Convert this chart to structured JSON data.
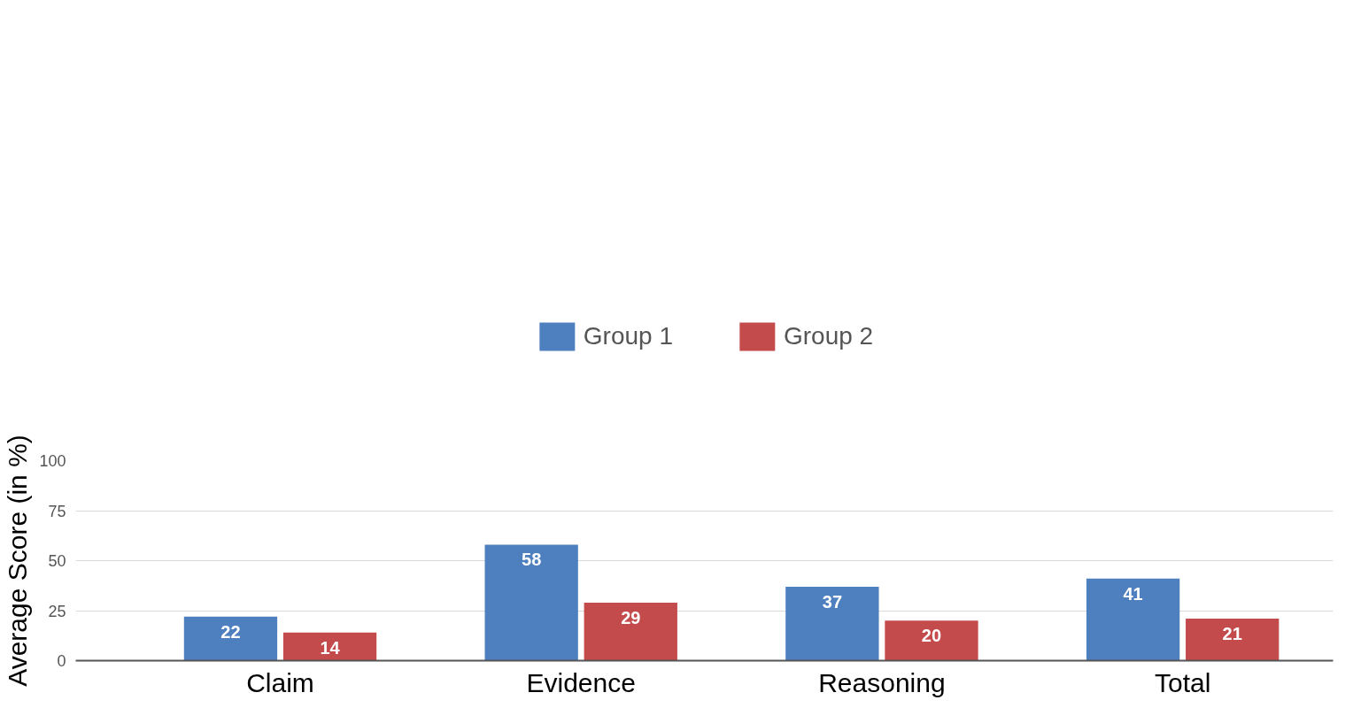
{
  "chart_data": {
    "type": "bar",
    "ylabel": "Average Score (in %)",
    "categories": [
      "Claim",
      "Evidence",
      "Reasoning",
      "Total"
    ],
    "series": [
      {
        "name": "Group 1",
        "color": "#4e7fbf",
        "values": [
          22,
          58,
          37,
          41
        ]
      },
      {
        "name": "Group 2",
        "color": "#c44b4b",
        "values": [
          14,
          29,
          20,
          21
        ]
      }
    ],
    "ylim": [
      0,
      100
    ],
    "yticks": [
      0,
      25,
      50,
      75,
      100
    ],
    "grid": "y",
    "legend": "top",
    "data_labels": true
  }
}
